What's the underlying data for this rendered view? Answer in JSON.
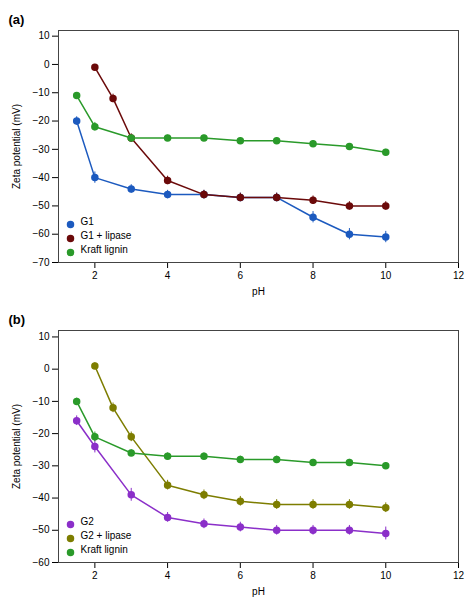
{
  "chart_data": [
    {
      "type": "line",
      "title": "(a)",
      "xlabel": "pH",
      "ylabel": "Zeta potential (mV)",
      "xlim": [
        1.0,
        12.0
      ],
      "xticks": [
        2,
        4,
        6,
        8,
        10,
        12
      ],
      "ylim": [
        -70,
        12
      ],
      "yticks": [
        -70,
        -60,
        -50,
        -40,
        -30,
        -20,
        -10,
        0,
        10
      ],
      "grid": false,
      "legend": "lower left",
      "series": [
        {
          "name": "G1",
          "color": "#1c5abf",
          "marker": "o",
          "line_style": "solid",
          "x": [
            1.5,
            2.0,
            3.0,
            4.0,
            5.0,
            6.0,
            7.0,
            8.0,
            9.0,
            10.0
          ],
          "values": [
            -20,
            -40,
            -44,
            -46,
            -46,
            -47,
            -47,
            -54,
            -60,
            -61
          ],
          "yerr": [
            1.5,
            2.0,
            1.5,
            1.5,
            1.5,
            1.5,
            1.5,
            2.0,
            2.0,
            2.0
          ]
        },
        {
          "name": "G1 + lipase",
          "color": "#6b0a0a",
          "marker": "o",
          "line_style": "solid",
          "x": [
            2.0,
            2.5,
            3.0,
            4.0,
            5.0,
            6.0,
            7.0,
            8.0,
            9.0,
            10.0
          ],
          "values": [
            -1,
            -12,
            -26,
            -41,
            -46,
            -47,
            -47,
            -48,
            -50,
            -50
          ],
          "yerr": [
            1.0,
            1.5,
            1.5,
            1.5,
            1.5,
            1.5,
            1.5,
            1.5,
            1.5,
            1.5
          ]
        },
        {
          "name": "Kraft lignin",
          "color": "#2a9a2a",
          "marker": "o",
          "line_style": "solid",
          "x": [
            1.5,
            2.0,
            3.0,
            4.0,
            5.0,
            6.0,
            7.0,
            8.0,
            9.0,
            10.0
          ],
          "values": [
            -11,
            -22,
            -26,
            -26,
            -26,
            -27,
            -27,
            -28,
            -29,
            -31
          ],
          "yerr": [
            1.0,
            1.5,
            1.0,
            1.0,
            1.0,
            1.0,
            1.0,
            1.0,
            1.0,
            1.0
          ]
        }
      ]
    },
    {
      "type": "line",
      "title": "(b)",
      "xlabel": "pH",
      "ylabel": "Zeta potential (mV)",
      "xlim": [
        1.0,
        12.0
      ],
      "xticks": [
        2,
        4,
        6,
        8,
        10,
        12
      ],
      "ylim": [
        -60,
        12
      ],
      "yticks": [
        -60,
        -50,
        -40,
        -30,
        -20,
        -10,
        0,
        10
      ],
      "grid": false,
      "legend": "lower left",
      "series": [
        {
          "name": "G2",
          "color": "#8b2fc9",
          "marker": "o",
          "line_style": "solid",
          "x": [
            1.5,
            2.0,
            3.0,
            4.0,
            5.0,
            6.0,
            7.0,
            8.0,
            9.0,
            10.0
          ],
          "values": [
            -16,
            -24,
            -39,
            -46,
            -48,
            -49,
            -50,
            -50,
            -50,
            -51
          ],
          "yerr": [
            1.5,
            2.0,
            2.0,
            1.5,
            1.5,
            1.5,
            1.5,
            1.5,
            1.5,
            2.0
          ]
        },
        {
          "name": "G2 + lipase",
          "color": "#7d7d00",
          "marker": "o",
          "line_style": "solid",
          "x": [
            2.0,
            2.5,
            3.0,
            4.0,
            5.0,
            6.0,
            7.0,
            8.0,
            9.0,
            10.0
          ],
          "values": [
            1,
            -12,
            -21,
            -36,
            -39,
            -41,
            -42,
            -42,
            -42,
            -43
          ],
          "yerr": [
            1.0,
            1.5,
            1.5,
            1.5,
            1.5,
            1.5,
            1.5,
            1.5,
            1.5,
            1.5
          ]
        },
        {
          "name": "Kraft lignin",
          "color": "#2a9a2a",
          "marker": "o",
          "line_style": "solid",
          "x": [
            1.5,
            2.0,
            3.0,
            4.0,
            5.0,
            6.0,
            7.0,
            8.0,
            9.0,
            10.0
          ],
          "values": [
            -10,
            -21,
            -26,
            -27,
            -27,
            -28,
            -28,
            -29,
            -29,
            -30
          ],
          "yerr": [
            1.0,
            1.5,
            1.0,
            1.0,
            1.0,
            1.0,
            1.0,
            1.0,
            1.0,
            1.0
          ]
        }
      ]
    }
  ]
}
